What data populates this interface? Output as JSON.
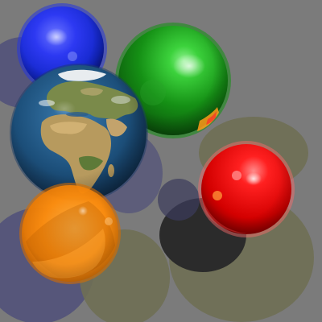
{
  "scene": {
    "background_color": "#7b7b7b",
    "shadow_colors": {
      "blue_tint": "#4a4a7a",
      "olive_tint": "#6f6f54",
      "dark": "#2b2b2b"
    },
    "spheres": [
      {
        "name": "blue-sphere",
        "color": "#1d2eea",
        "material": "glossy"
      },
      {
        "name": "green-sphere",
        "color": "#18a018",
        "material": "glossy"
      },
      {
        "name": "earth-sphere",
        "color": "#1d4f7b",
        "material": "textured-earth"
      },
      {
        "name": "red-sphere",
        "color": "#e00000",
        "material": "glossy-reflective"
      },
      {
        "name": "orange-sphere",
        "color": "#ff8c00",
        "material": "glass-tinted"
      }
    ]
  }
}
